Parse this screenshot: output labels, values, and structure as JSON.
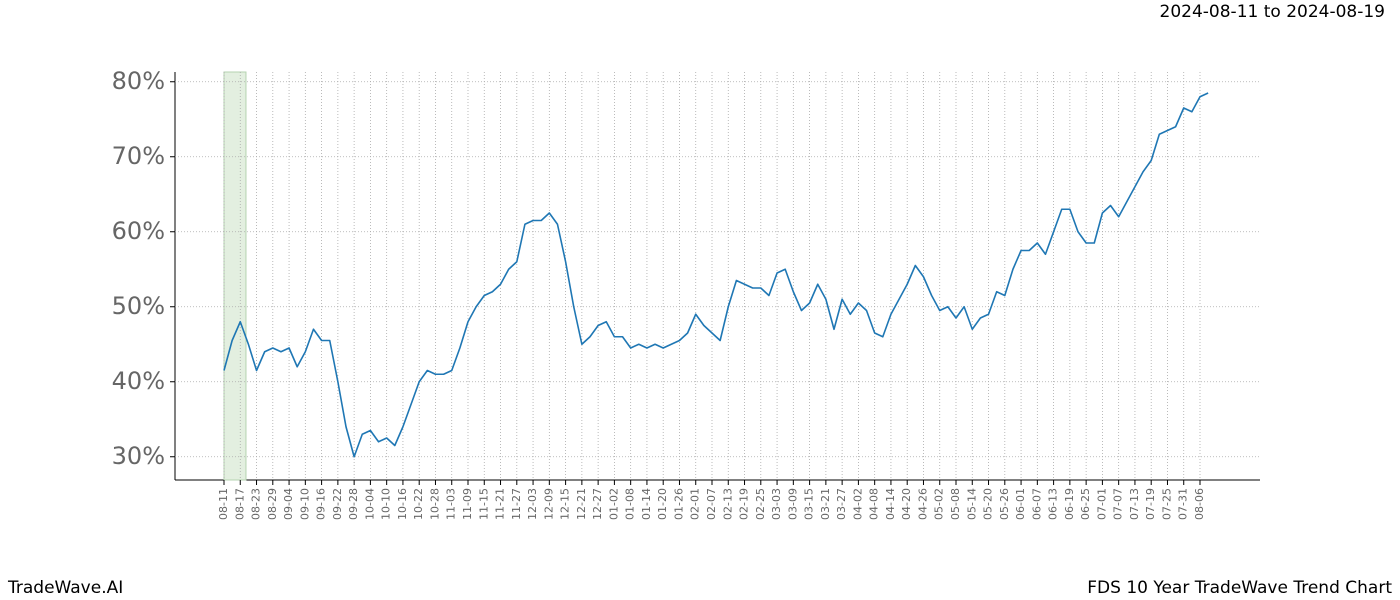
{
  "chart_data": {
    "type": "line",
    "date_range": "2024-08-11 to 2024-08-19",
    "brand": "TradeWave.AI",
    "title": "FDS 10 Year TradeWave Trend Chart",
    "categories": [
      "08-11",
      null,
      "08-17",
      null,
      "08-23",
      null,
      "08-29",
      null,
      "09-04",
      null,
      "09-10",
      null,
      "09-16",
      null,
      "09-22",
      null,
      "09-28",
      null,
      "10-04",
      null,
      "10-10",
      null,
      "10-16",
      null,
      "10-22",
      null,
      "10-28",
      null,
      "11-03",
      null,
      "11-09",
      null,
      "11-15",
      null,
      "11-21",
      null,
      "11-27",
      null,
      "12-03",
      null,
      "12-09",
      null,
      "12-15",
      null,
      "12-21",
      null,
      "12-27",
      null,
      "01-02",
      null,
      "01-08",
      null,
      "01-14",
      null,
      "01-20",
      null,
      "01-26",
      null,
      "02-01",
      null,
      "02-07",
      null,
      "02-13",
      null,
      "02-19",
      null,
      "02-25",
      null,
      "03-03",
      null,
      "03-09",
      null,
      "03-15",
      null,
      "03-21",
      null,
      "03-27",
      null,
      "04-02",
      null,
      "04-08",
      null,
      "04-14",
      null,
      "04-20",
      null,
      "04-26",
      null,
      "05-02",
      null,
      "05-08",
      null,
      "05-14",
      null,
      "05-20",
      null,
      "05-26",
      null,
      "06-01",
      null,
      "06-07",
      null,
      "06-13",
      null,
      "06-19",
      null,
      "06-25",
      null,
      "07-01",
      null,
      "07-07",
      null,
      "07-13",
      null,
      "07-19",
      null,
      "07-25",
      null,
      "07-31",
      null,
      "08-06",
      null
    ],
    "series": [
      {
        "color": "#1f77b4",
        "values": [
          41.5,
          45.5,
          48,
          45,
          41.5,
          44,
          44.5,
          44,
          44.5,
          42,
          44,
          47,
          45.5,
          45.5,
          40,
          34,
          30,
          33,
          33.5,
          32,
          32.5,
          31.5,
          34,
          37,
          40,
          41.5,
          41,
          41,
          41.5,
          44.5,
          48,
          50,
          51.5,
          52,
          53,
          55,
          56,
          61,
          61.5,
          61.5,
          62.5,
          61,
          56,
          50,
          45,
          46,
          47.5,
          48,
          46,
          46,
          44.5,
          45,
          44.5,
          45,
          44.5,
          45,
          45.5,
          46.5,
          49,
          47.5,
          46.5,
          45.5,
          50,
          53.5,
          53,
          52.5,
          52.5,
          51.5,
          54.5,
          55,
          52,
          49.5,
          50.5,
          53,
          51,
          47,
          51,
          49,
          50.5,
          49.5,
          46.5,
          46,
          49,
          51,
          53,
          55.5,
          54,
          51.5,
          49.5,
          50,
          48.5,
          50,
          47,
          48.5,
          49,
          52,
          51.5,
          55,
          57.5,
          57.5,
          58.5,
          57,
          60,
          63,
          63,
          60,
          58.5,
          58.5,
          62.5,
          63.5,
          62,
          64,
          66,
          68,
          69.5,
          73,
          73.5,
          74,
          76.5,
          76,
          78,
          78.5
        ]
      }
    ],
    "highlight": {
      "start": 0,
      "end": 2.7,
      "color": "#e3efe0"
    },
    "ylim": [
      26.9,
      81.3
    ],
    "yticks": [
      {
        "value": 30,
        "label": "30%"
      },
      {
        "value": 40,
        "label": "40%"
      },
      {
        "value": 50,
        "label": "50%"
      },
      {
        "value": 60,
        "label": "60%"
      },
      {
        "value": 70,
        "label": "70%"
      },
      {
        "value": 80,
        "label": "80%"
      }
    ],
    "grid": true
  }
}
